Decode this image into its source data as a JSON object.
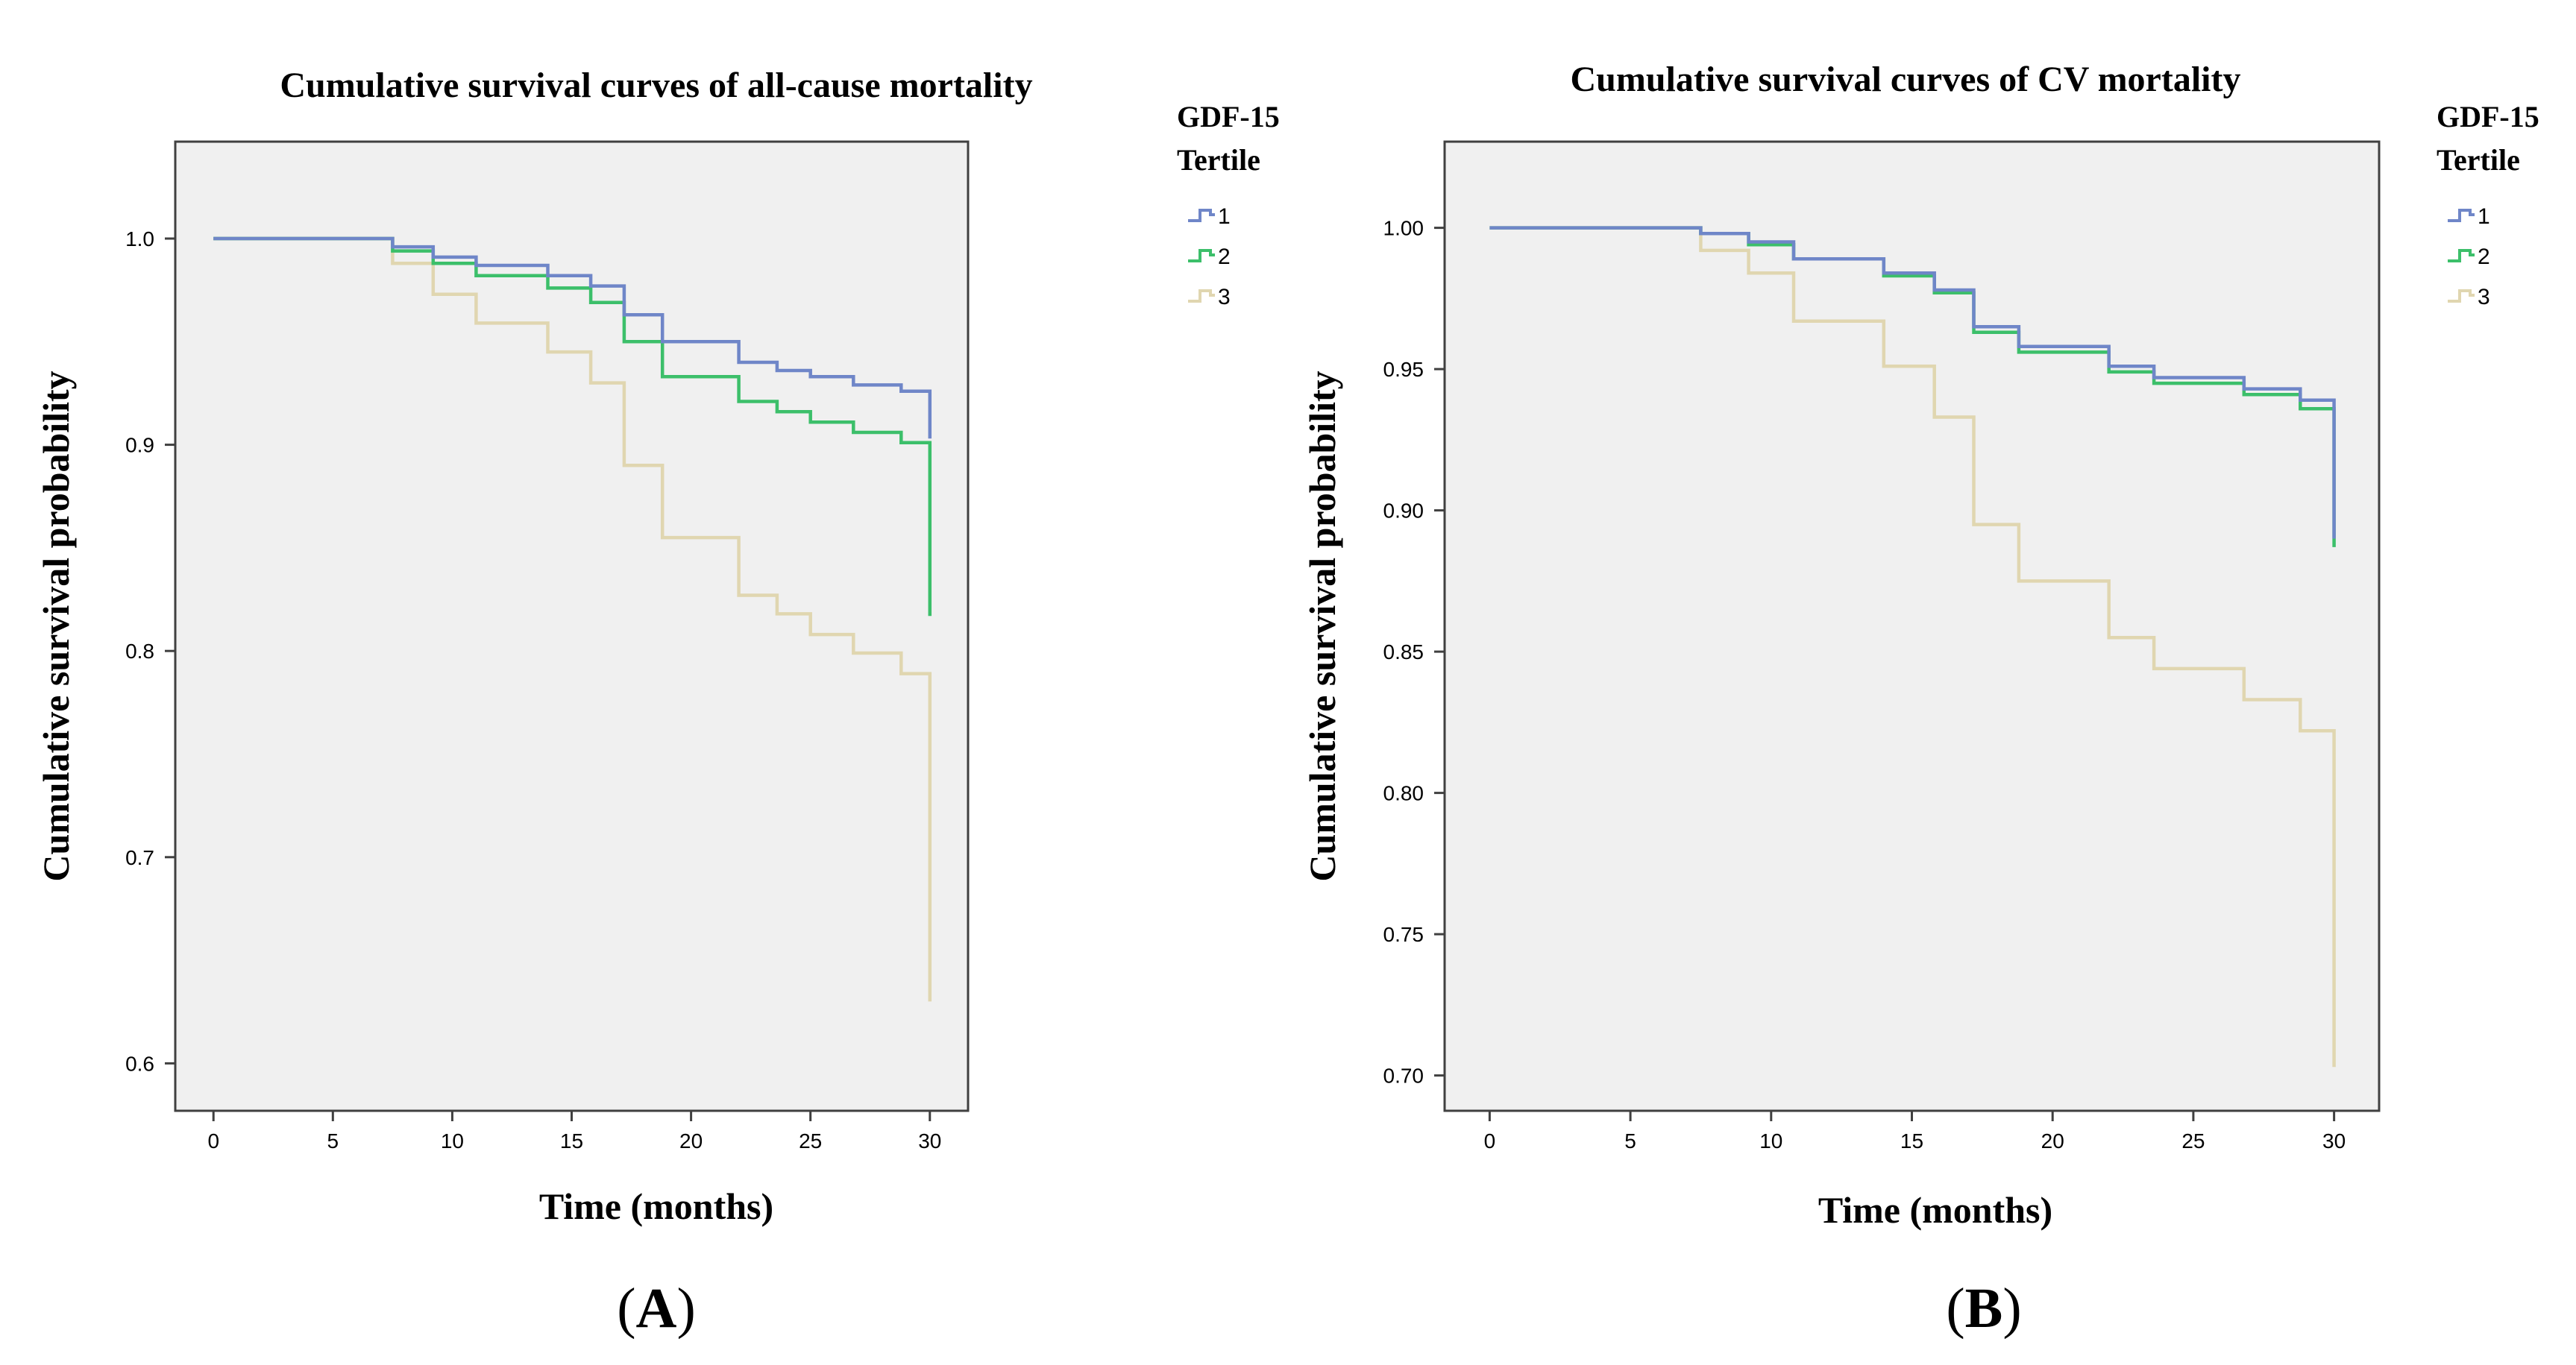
{
  "chart_data": [
    {
      "type": "line",
      "panel_label": "A",
      "title": "Cumulative survival curves of all-cause  mortality",
      "xlabel": "Time (months)",
      "ylabel": "Cumulative survival probability",
      "xlim": [
        -1.6,
        31.6
      ],
      "ylim": [
        0.577,
        1.047
      ],
      "xticks": [
        0,
        5,
        10,
        15,
        20,
        25,
        30
      ],
      "yticks": [
        0.6,
        0.7,
        0.8,
        0.9,
        1.0
      ],
      "ytick_labels": [
        "0.6",
        "0.7",
        "0.8",
        "0.9",
        "1.0"
      ],
      "grid": false,
      "background": "#f0f0f0",
      "legend": {
        "title_line1": "GDF-15",
        "title_line2": "Tertile",
        "placement": "right"
      },
      "series": [
        {
          "name": "1",
          "color": "#6f86c8",
          "steps": [
            [
              0,
              1.0
            ],
            [
              7.5,
              1.0
            ],
            [
              7.5,
              0.996
            ],
            [
              9.2,
              0.996
            ],
            [
              9.2,
              0.991
            ],
            [
              11,
              0.991
            ],
            [
              11,
              0.987
            ],
            [
              14,
              0.987
            ],
            [
              14,
              0.982
            ],
            [
              15.8,
              0.982
            ],
            [
              15.8,
              0.977
            ],
            [
              17.2,
              0.977
            ],
            [
              17.2,
              0.963
            ],
            [
              18.8,
              0.963
            ],
            [
              18.8,
              0.95
            ],
            [
              22,
              0.95
            ],
            [
              22,
              0.94
            ],
            [
              23.6,
              0.94
            ],
            [
              23.6,
              0.936
            ],
            [
              25,
              0.936
            ],
            [
              25,
              0.933
            ],
            [
              26.8,
              0.933
            ],
            [
              26.8,
              0.929
            ],
            [
              28.8,
              0.929
            ],
            [
              28.8,
              0.926
            ],
            [
              30,
              0.926
            ],
            [
              30,
              0.903
            ]
          ]
        },
        {
          "name": "2",
          "color": "#3cbf6a",
          "steps": [
            [
              0,
              1.0
            ],
            [
              7.5,
              1.0
            ],
            [
              7.5,
              0.994
            ],
            [
              9.2,
              0.994
            ],
            [
              9.2,
              0.988
            ],
            [
              11,
              0.988
            ],
            [
              11,
              0.982
            ],
            [
              14,
              0.982
            ],
            [
              14,
              0.976
            ],
            [
              15.8,
              0.976
            ],
            [
              15.8,
              0.969
            ],
            [
              17.2,
              0.969
            ],
            [
              17.2,
              0.95
            ],
            [
              18.8,
              0.95
            ],
            [
              18.8,
              0.933
            ],
            [
              22,
              0.933
            ],
            [
              22,
              0.921
            ],
            [
              23.6,
              0.921
            ],
            [
              23.6,
              0.916
            ],
            [
              25,
              0.916
            ],
            [
              25,
              0.911
            ],
            [
              26.8,
              0.911
            ],
            [
              26.8,
              0.906
            ],
            [
              28.8,
              0.906
            ],
            [
              28.8,
              0.901
            ],
            [
              30,
              0.901
            ],
            [
              30,
              0.817
            ]
          ]
        },
        {
          "name": "3",
          "color": "#e0d6b0",
          "steps": [
            [
              0,
              1.0
            ],
            [
              7.5,
              1.0
            ],
            [
              7.5,
              0.988
            ],
            [
              9.2,
              0.988
            ],
            [
              9.2,
              0.973
            ],
            [
              11,
              0.973
            ],
            [
              11,
              0.959
            ],
            [
              14,
              0.959
            ],
            [
              14,
              0.945
            ],
            [
              15.8,
              0.945
            ],
            [
              15.8,
              0.93
            ],
            [
              17.2,
              0.93
            ],
            [
              17.2,
              0.89
            ],
            [
              18.8,
              0.89
            ],
            [
              18.8,
              0.855
            ],
            [
              22,
              0.855
            ],
            [
              22,
              0.827
            ],
            [
              23.6,
              0.827
            ],
            [
              23.6,
              0.818
            ],
            [
              25,
              0.818
            ],
            [
              25,
              0.808
            ],
            [
              26.8,
              0.808
            ],
            [
              26.8,
              0.799
            ],
            [
              28.8,
              0.799
            ],
            [
              28.8,
              0.789
            ],
            [
              30,
              0.789
            ],
            [
              30,
              0.63
            ]
          ]
        }
      ]
    },
    {
      "type": "line",
      "panel_label": "B",
      "title": "Cumulative survival curves of CV  mortality",
      "xlabel": "Time (months)",
      "ylabel": "Cumulative survival probability",
      "xlim": [
        -1.6,
        31.6
      ],
      "ylim": [
        0.6875,
        1.0305
      ],
      "xticks": [
        0,
        5,
        10,
        15,
        20,
        25,
        30
      ],
      "yticks": [
        0.7,
        0.75,
        0.8,
        0.85,
        0.9,
        0.95,
        1.0
      ],
      "ytick_labels": [
        "0.70",
        "0.75",
        "0.80",
        "0.85",
        "0.90",
        "0.95",
        "1.00"
      ],
      "grid": false,
      "background": "#f0f0f0",
      "legend": {
        "title_line1": "GDF-15",
        "title_line2": "Tertile",
        "placement": "right"
      },
      "series": [
        {
          "name": "1",
          "color": "#6f86c8",
          "steps": [
            [
              0,
              1.0
            ],
            [
              7.5,
              1.0
            ],
            [
              7.5,
              0.998
            ],
            [
              9.2,
              0.998
            ],
            [
              9.2,
              0.995
            ],
            [
              10.8,
              0.995
            ],
            [
              10.8,
              0.989
            ],
            [
              14,
              0.989
            ],
            [
              14,
              0.984
            ],
            [
              15.8,
              0.984
            ],
            [
              15.8,
              0.978
            ],
            [
              17.2,
              0.978
            ],
            [
              17.2,
              0.965
            ],
            [
              18.8,
              0.965
            ],
            [
              18.8,
              0.958
            ],
            [
              22,
              0.958
            ],
            [
              22,
              0.951
            ],
            [
              23.6,
              0.951
            ],
            [
              23.6,
              0.947
            ],
            [
              26.8,
              0.947
            ],
            [
              26.8,
              0.943
            ],
            [
              28.8,
              0.943
            ],
            [
              28.8,
              0.939
            ],
            [
              30,
              0.939
            ],
            [
              30,
              0.89
            ]
          ]
        },
        {
          "name": "2",
          "color": "#3cbf6a",
          "steps": [
            [
              0,
              1.0
            ],
            [
              7.5,
              1.0
            ],
            [
              7.5,
              0.998
            ],
            [
              9.2,
              0.998
            ],
            [
              9.2,
              0.994
            ],
            [
              10.8,
              0.994
            ],
            [
              10.8,
              0.989
            ],
            [
              14,
              0.989
            ],
            [
              14,
              0.983
            ],
            [
              15.8,
              0.983
            ],
            [
              15.8,
              0.977
            ],
            [
              17.2,
              0.977
            ],
            [
              17.2,
              0.963
            ],
            [
              18.8,
              0.963
            ],
            [
              18.8,
              0.956
            ],
            [
              22,
              0.956
            ],
            [
              22,
              0.949
            ],
            [
              23.6,
              0.949
            ],
            [
              23.6,
              0.945
            ],
            [
              26.8,
              0.945
            ],
            [
              26.8,
              0.941
            ],
            [
              28.8,
              0.941
            ],
            [
              28.8,
              0.936
            ],
            [
              30,
              0.936
            ],
            [
              30,
              0.887
            ]
          ]
        },
        {
          "name": "3",
          "color": "#e0d6b0",
          "steps": [
            [
              0,
              1.0
            ],
            [
              7.5,
              1.0
            ],
            [
              7.5,
              0.992
            ],
            [
              9.2,
              0.992
            ],
            [
              9.2,
              0.984
            ],
            [
              10.8,
              0.984
            ],
            [
              10.8,
              0.967
            ],
            [
              14,
              0.967
            ],
            [
              14,
              0.951
            ],
            [
              15.8,
              0.951
            ],
            [
              15.8,
              0.933
            ],
            [
              17.2,
              0.933
            ],
            [
              17.2,
              0.895
            ],
            [
              18.8,
              0.895
            ],
            [
              18.8,
              0.875
            ],
            [
              22,
              0.875
            ],
            [
              22,
              0.855
            ],
            [
              23.6,
              0.855
            ],
            [
              23.6,
              0.844
            ],
            [
              26.8,
              0.844
            ],
            [
              26.8,
              0.833
            ],
            [
              28.8,
              0.833
            ],
            [
              28.8,
              0.822
            ],
            [
              30,
              0.822
            ],
            [
              30,
              0.703
            ]
          ]
        }
      ]
    }
  ]
}
